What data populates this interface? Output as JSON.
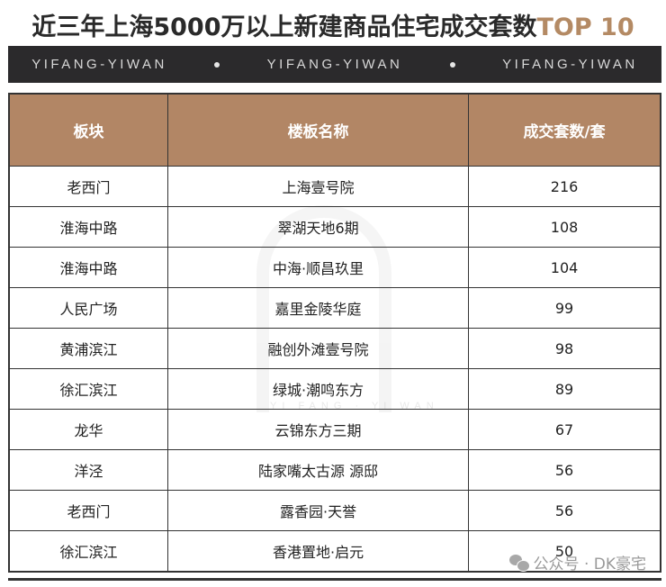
{
  "title": {
    "main": "近三年上海5000万以上新建商品住宅成交套数",
    "accent": "TOP 10"
  },
  "banner": {
    "items": [
      "YIFANG-YIWAN",
      "YIFANG-YIWAN",
      "YIFANG-YIWAN"
    ]
  },
  "table": {
    "headers": [
      "板块",
      "楼板名称",
      "成交套数/套"
    ],
    "rows": [
      [
        "老西门",
        "上海壹号院",
        "216"
      ],
      [
        "淮海中路",
        "翠湖天地6期",
        "108"
      ],
      [
        "淮海中路",
        "中海·顺昌玖里",
        "104"
      ],
      [
        "人民广场",
        "嘉里金陵华庭",
        "99"
      ],
      [
        "黄浦滨江",
        "融创外滩壹号院",
        "98"
      ],
      [
        "徐汇滨江",
        "绿城·潮鸣东方",
        "89"
      ],
      [
        "龙华",
        "云锦东方三期",
        "67"
      ],
      [
        "洋泾",
        "陆家嘴太古源 源邸",
        "56"
      ],
      [
        "老西门",
        "露香园·天誉",
        "56"
      ],
      [
        "徐汇滨江",
        "香港置地·启元",
        "50"
      ]
    ]
  },
  "watermark": {
    "text": "YI FANG · YI WAN"
  },
  "credit": {
    "icon": "wechat-icon",
    "text": "公众号 · DK豪宅"
  },
  "colors": {
    "header_bg": "#b28665",
    "accent": "#b48a64",
    "banner_bg": "#2b2a2c"
  }
}
